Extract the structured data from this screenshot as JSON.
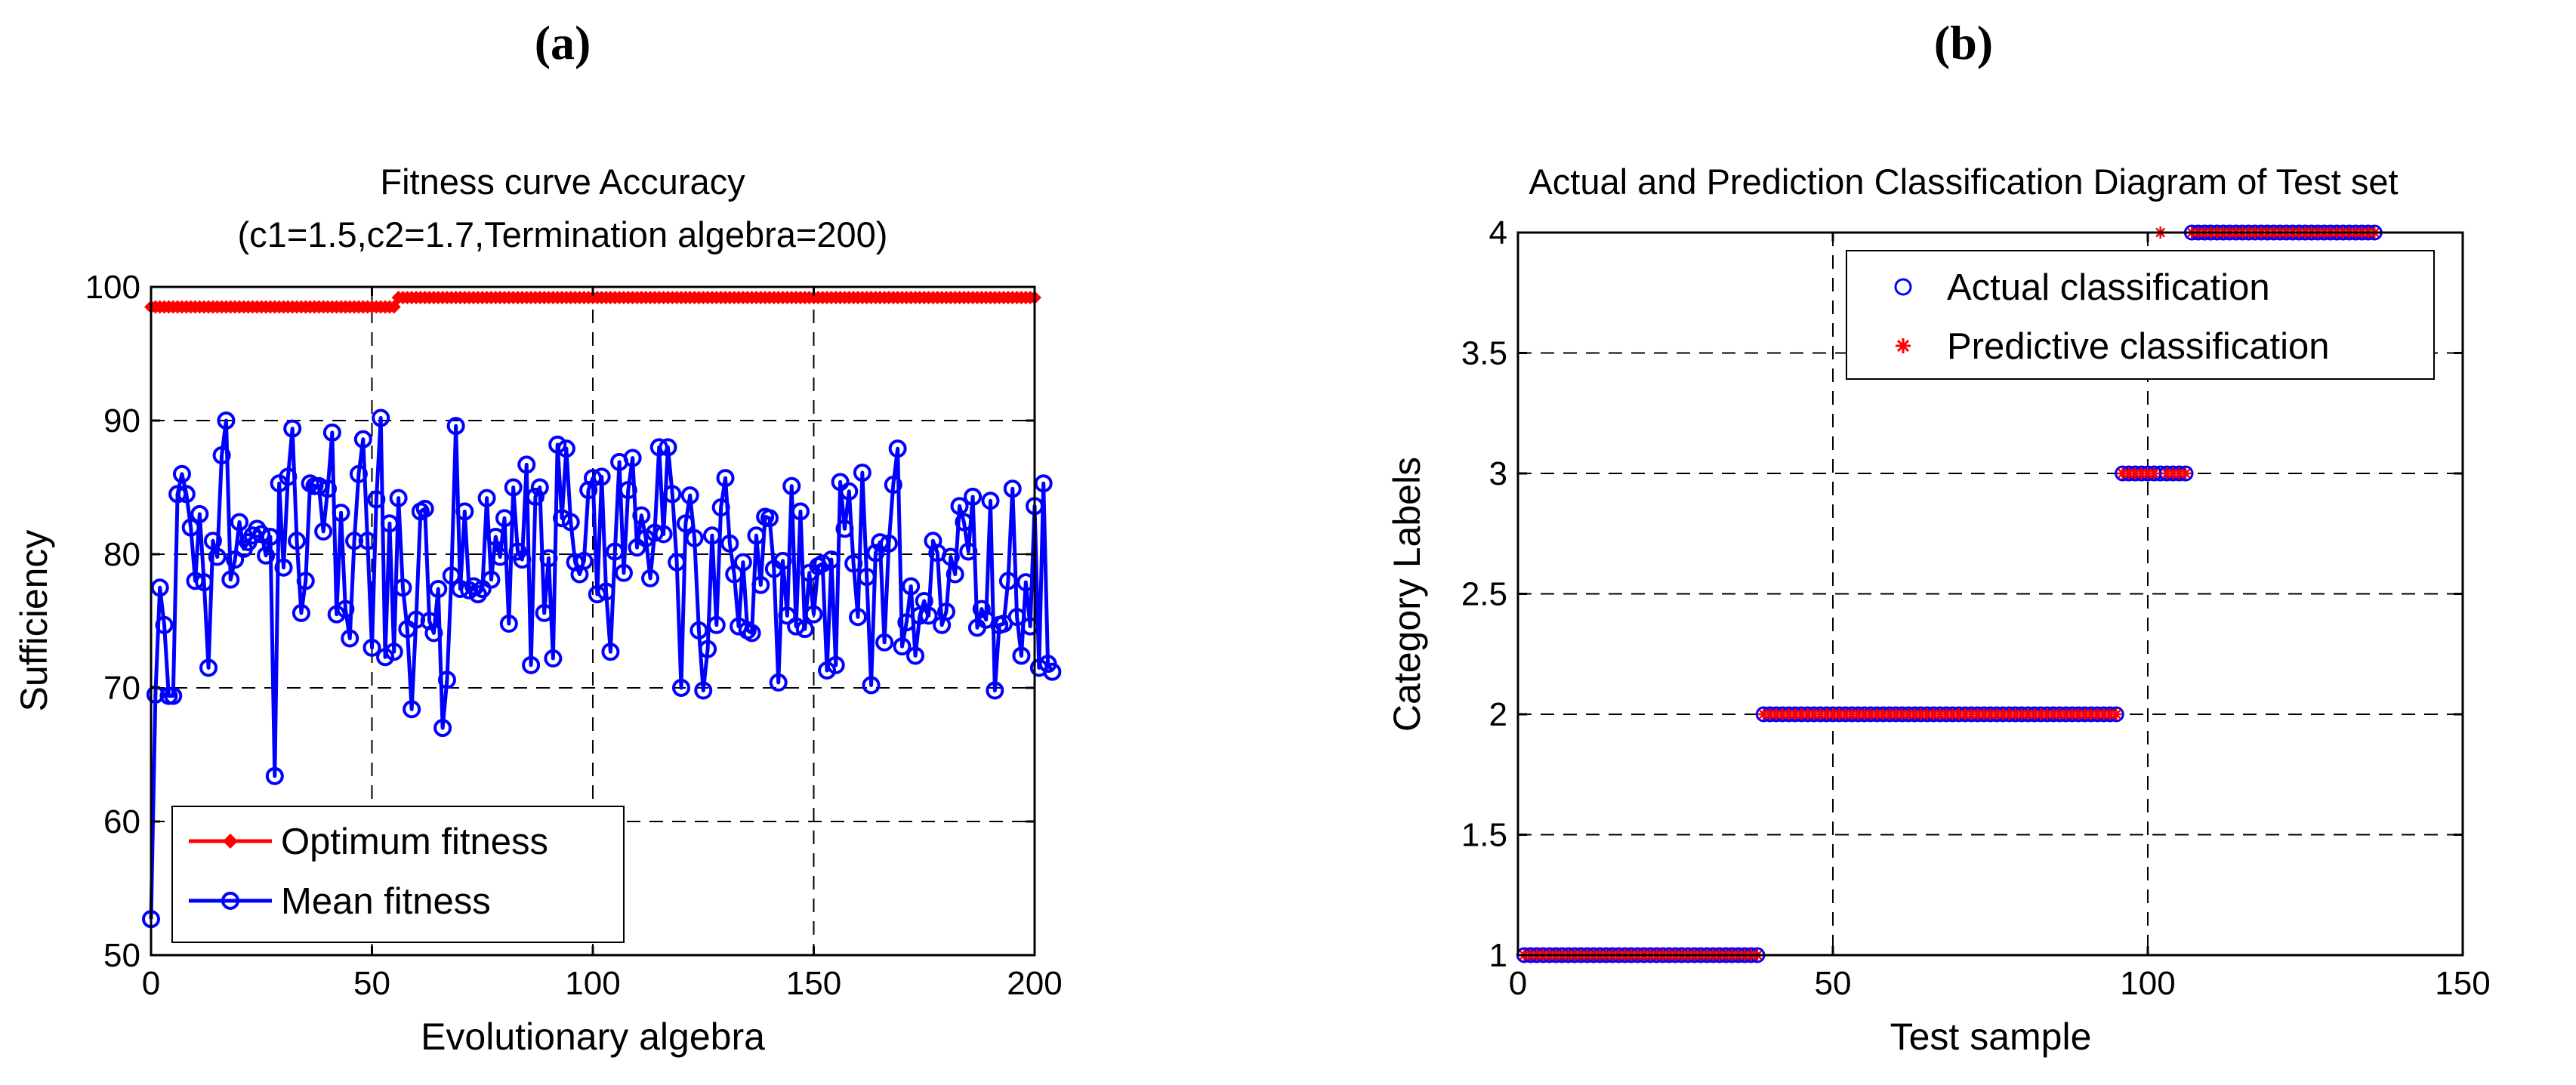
{
  "panels": {
    "a_label": "(a)",
    "b_label": "(b)"
  },
  "chart_data": [
    {
      "type": "line",
      "title": "Fitness curve Accuracy",
      "subtitle": "(c1=1.5,c2=1.7,Termination algebra=200)",
      "xlabel": "Evolutionary algebra",
      "ylabel": "Sufficiency",
      "xlim": [
        0,
        200
      ],
      "ylim": [
        50,
        100
      ],
      "xticks": [
        0,
        50,
        100,
        150,
        200
      ],
      "yticks": [
        50,
        60,
        70,
        80,
        90,
        100
      ],
      "grid": true,
      "legend_position": "bottom-left",
      "series": [
        {
          "name": "Optimum fitness",
          "color": "#ff0000",
          "marker": "diamond",
          "segments": [
            {
              "x_start": 0,
              "x_end": 55,
              "y": 98.5
            },
            {
              "x_start": 56,
              "x_end": 200,
              "y": 99.2
            }
          ]
        },
        {
          "name": "Mean fitness",
          "color": "#0000ff",
          "marker": "circle",
          "values": [
            52.7,
            69.5,
            77.5,
            74.7,
            69.4,
            69.4,
            84.5,
            86,
            84.5,
            82,
            78,
            83,
            77.9,
            71.5,
            81,
            79.8,
            87.4,
            90,
            78.1,
            79.6,
            82.4,
            80.4,
            80.9,
            81.4,
            81.9,
            81.5,
            79.9,
            81.3,
            63.4,
            85.3,
            79,
            85.8,
            89.4,
            81,
            75.6,
            78,
            85.3,
            85.1,
            85.1,
            81.7,
            84.9,
            89.1,
            75.5,
            83.1,
            75.9,
            73.7,
            81,
            86,
            88.6,
            81,
            73,
            84.1,
            90.2,
            72.3,
            82.3,
            72.7,
            84.2,
            77.5,
            74.4,
            68.4,
            75.1,
            83.2,
            83.4,
            75,
            74.1,
            77.4,
            67,
            70.6,
            78.4,
            89.6,
            77.4,
            83.2,
            77.3,
            77.6,
            77,
            77.4,
            84.2,
            78.1,
            81.3,
            79.8,
            82.7,
            74.8,
            85,
            80.2,
            79.6,
            86.7,
            71.7,
            84.3,
            85,
            75.6,
            79.7,
            72.2,
            88.2,
            82.7,
            87.9,
            82.4,
            79.4,
            78.5,
            79.5,
            84.8,
            85.7,
            77,
            85.8,
            77.2,
            72.7,
            80.2,
            86.9,
            78.6,
            84.8,
            87.2,
            80.5,
            82.9,
            81.2,
            78.2,
            81.6,
            88,
            81.5,
            88,
            84.5,
            79.4,
            70,
            82.3,
            84.4,
            81.2,
            74.3,
            69.8,
            72.9,
            81.4,
            74.7,
            83.5,
            85.7,
            80.8,
            78.5,
            74.6,
            79.4,
            74.3,
            74.1,
            81.4,
            77.7,
            82.8,
            82.7,
            78.9,
            70.4,
            79.5,
            75.4,
            85.1,
            74.6,
            83.2,
            74.4,
            78.6,
            75.5,
            79.1,
            79.3,
            71.3,
            79.6,
            71.7,
            85.4,
            81.9,
            84.7,
            79.3,
            75.3,
            86.1,
            78.3,
            70.2,
            80.1,
            80.9,
            73.4,
            80.8,
            85.2,
            87.9,
            73.1,
            74.9,
            77.6,
            72.4,
            75.4,
            76.5,
            75.4,
            81,
            80.1,
            74.7,
            75.7,
            79.8,
            78.5,
            83.6,
            82.4,
            80.2,
            84.3,
            74.5,
            75.9,
            75.1,
            84,
            69.8,
            74.7,
            74.8,
            78,
            84.9,
            75.3,
            72.4,
            77.9,
            74.6,
            83.6,
            71.5,
            85.3,
            71.8,
            71.2
          ]
        }
      ]
    },
    {
      "type": "scatter",
      "title": "Actual and Prediction Classification Diagram of Test set",
      "xlabel": "Test sample",
      "ylabel": "Category Labels",
      "xlim": [
        0,
        150
      ],
      "ylim": [
        1,
        4
      ],
      "xticks": [
        0,
        50,
        100,
        150
      ],
      "yticks": [
        1,
        1.5,
        2,
        2.5,
        3,
        3.5,
        4
      ],
      "grid": true,
      "legend_position": "top-right",
      "series": [
        {
          "name": "Actual classification",
          "color": "#0000ff",
          "marker": "circle",
          "groups": [
            {
              "x_from": 1,
              "x_to": 38,
              "y": 1
            },
            {
              "x_from": 39,
              "x_to": 95,
              "y": 2
            },
            {
              "x_from": 96,
              "x_to": 106,
              "y": 3
            },
            {
              "x_from": 107,
              "x_to": 136,
              "y": 4
            }
          ]
        },
        {
          "name": "Predictive classification",
          "color": "#ff0000",
          "marker": "asterisk",
          "groups": [
            {
              "x_from": 1,
              "x_to": 38,
              "y": 1
            },
            {
              "x_from": 39,
              "x_to": 95,
              "y": 2
            },
            {
              "x_from": 96,
              "x_to": 101,
              "y": 3
            },
            {
              "x_from": 102,
              "x_to": 102,
              "y": 4
            },
            {
              "x_from": 103,
              "x_to": 106,
              "y": 3
            },
            {
              "x_from": 107,
              "x_to": 136,
              "y": 4
            }
          ]
        }
      ]
    }
  ]
}
